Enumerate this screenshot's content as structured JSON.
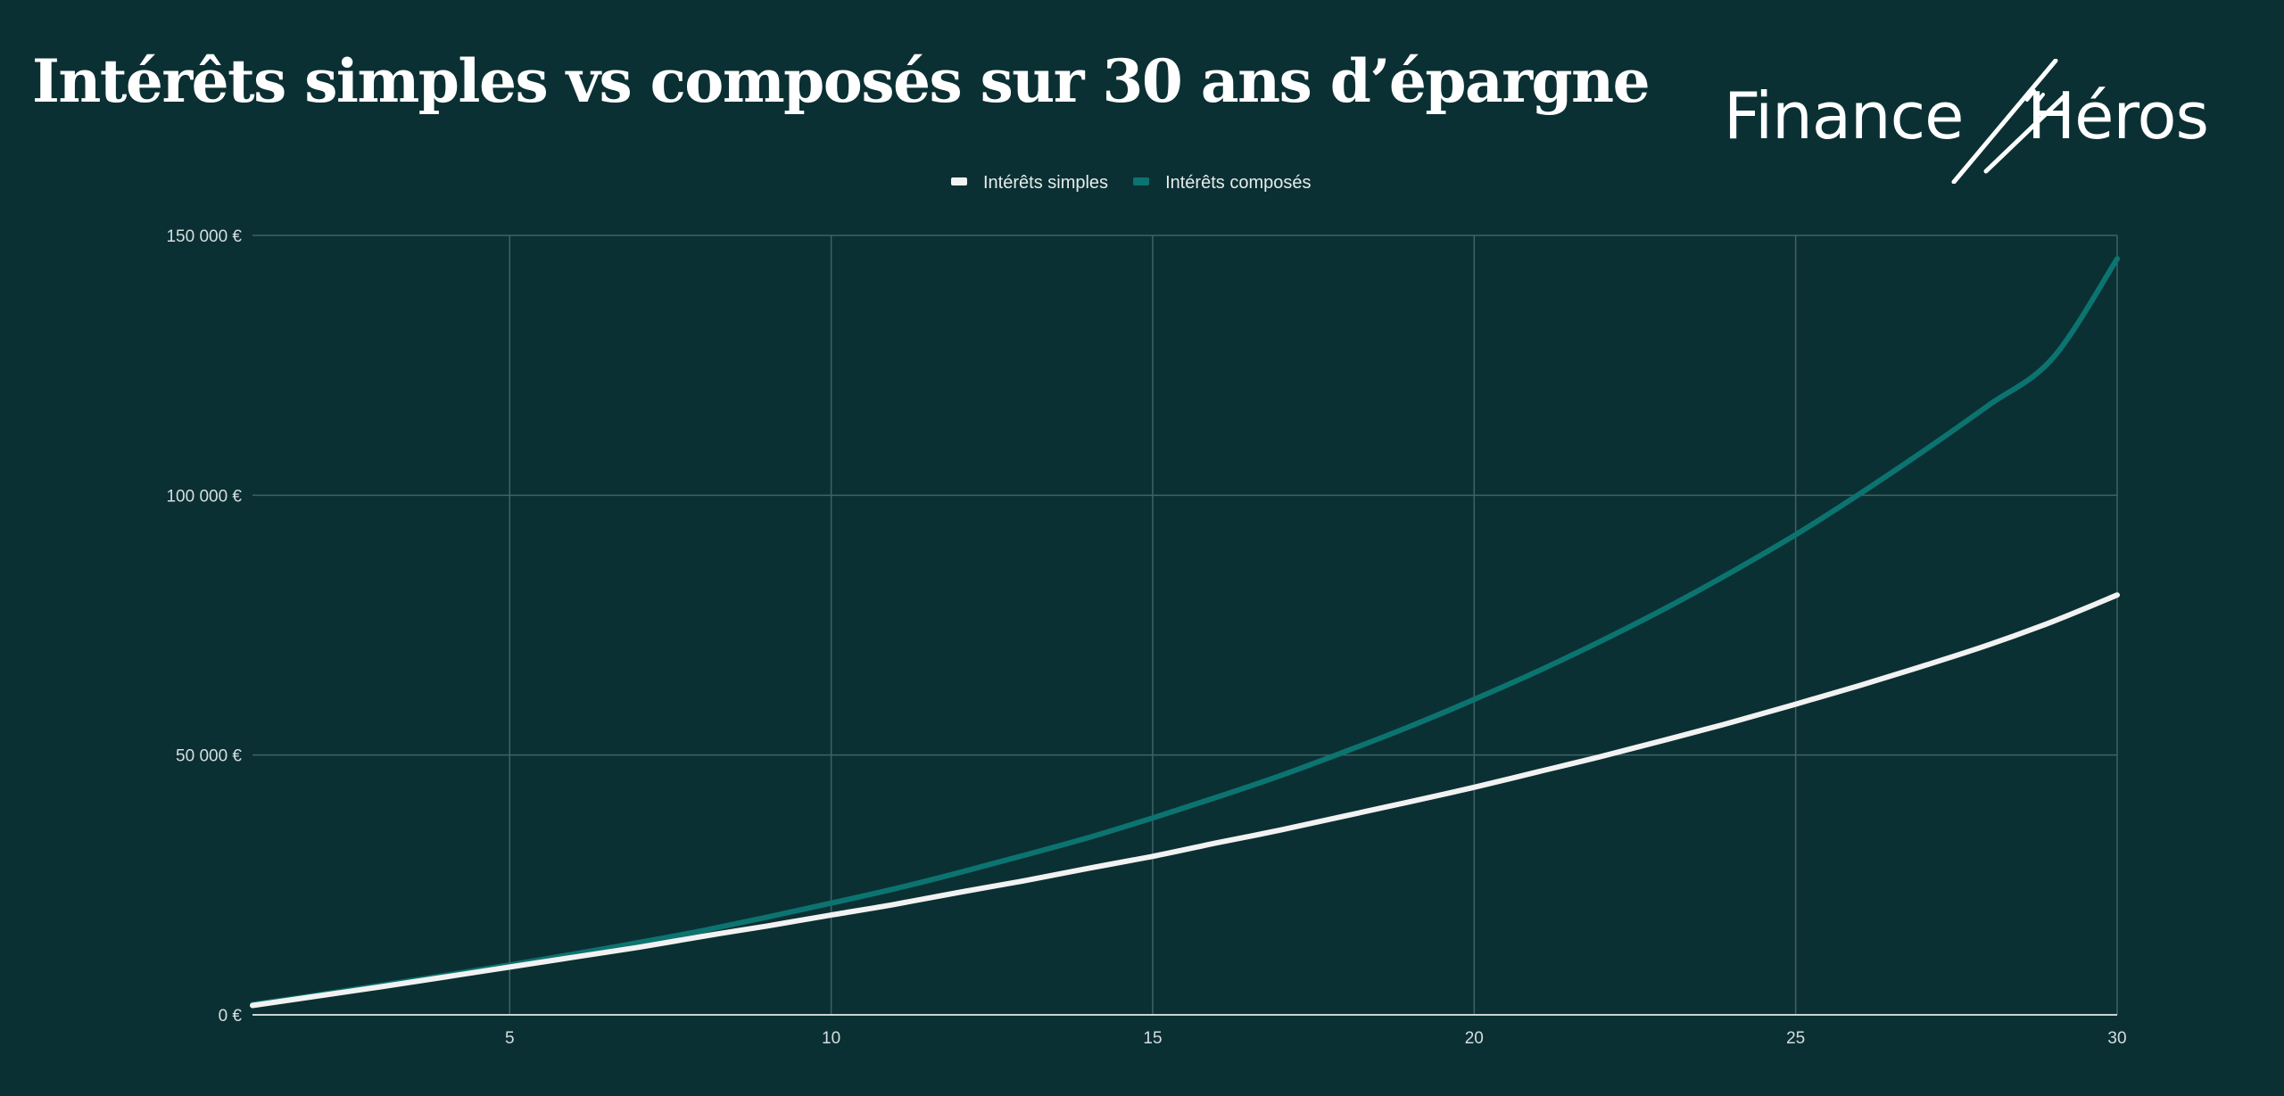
{
  "title": "Intérêts simples vs composés sur 30 ans d’épargne",
  "brand": {
    "left": "Finance",
    "right": "Héros"
  },
  "colors": {
    "background": "#0b3033",
    "grid": "#3f6364",
    "axis": "#c9d4d4",
    "simple": "#f2f2f2",
    "compound": "#0c7470"
  },
  "chart_data": {
    "type": "line",
    "x": [
      1,
      2,
      3,
      4,
      5,
      6,
      7,
      8,
      9,
      10,
      11,
      12,
      13,
      14,
      15,
      16,
      17,
      18,
      19,
      20,
      21,
      22,
      23,
      24,
      25,
      26,
      27,
      28,
      29,
      30
    ],
    "series": [
      {
        "name": "Intérêts simples",
        "color": "#f2f2f2",
        "values": [
          1800,
          3600,
          5400,
          7300,
          9200,
          11100,
          13000,
          15100,
          17100,
          19200,
          21300,
          23600,
          25800,
          28200,
          30500,
          33100,
          35600,
          38300,
          41000,
          43800,
          46800,
          49800,
          53000,
          56300,
          59800,
          63400,
          67200,
          71200,
          75700,
          80800
        ]
      },
      {
        "name": "Intérêts composés",
        "color": "#0c7470",
        "values": [
          2000,
          3800,
          5700,
          7600,
          9600,
          11700,
          13900,
          16200,
          18800,
          21500,
          24300,
          27400,
          30700,
          34100,
          37900,
          41900,
          46100,
          50700,
          55500,
          60700,
          66200,
          72100,
          78400,
          85200,
          92400,
          100300,
          108600,
          117300,
          126400,
          145500
        ]
      }
    ],
    "xlim": [
      1,
      30
    ],
    "ylim": [
      0,
      150000
    ],
    "x_ticks": [
      5,
      10,
      15,
      20,
      25,
      30
    ],
    "y_ticks": [
      {
        "value": 0,
        "label": "0 €"
      },
      {
        "value": 50000,
        "label": "50 000 €"
      },
      {
        "value": 100000,
        "label": "100 000 €"
      },
      {
        "value": 150000,
        "label": "150 000 €"
      }
    ],
    "legend_position": "top",
    "grid": true
  }
}
